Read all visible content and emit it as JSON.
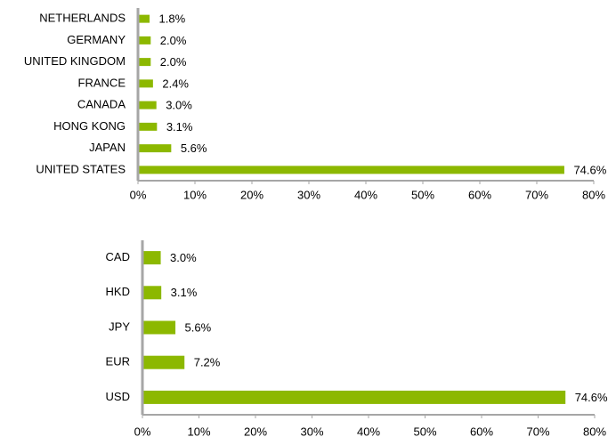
{
  "chart_data": [
    {
      "type": "hbar",
      "color": "#8cb800",
      "categories": [
        "NETHERLANDS",
        "GERMANY",
        "UNITED KINGDOM",
        "FRANCE",
        "CANADA",
        "HONG KONG",
        "JAPAN",
        "UNITED STATES"
      ],
      "values": [
        1.8,
        2.0,
        2.0,
        2.4,
        3.0,
        3.1,
        5.6,
        74.6
      ],
      "value_labels": [
        "1.8%",
        "2.0%",
        "2.0%",
        "2.4%",
        "3.0%",
        "3.1%",
        "5.6%",
        "74.6%"
      ],
      "xlim": [
        0,
        80
      ],
      "xticks": [
        {
          "value": 0,
          "label": "0%"
        },
        {
          "value": 10,
          "label": "10%"
        },
        {
          "value": 20,
          "label": "20%"
        },
        {
          "value": 30,
          "label": "30%"
        },
        {
          "value": 40,
          "label": "40%"
        },
        {
          "value": 50,
          "label": "50%"
        },
        {
          "value": 60,
          "label": "60%"
        },
        {
          "value": 70,
          "label": "70%"
        },
        {
          "value": 80,
          "label": "80%"
        }
      ]
    },
    {
      "type": "hbar",
      "color": "#8cb800",
      "categories": [
        "CAD",
        "HKD",
        "JPY",
        "EUR",
        "USD"
      ],
      "values": [
        3.0,
        3.1,
        5.6,
        7.2,
        74.6
      ],
      "value_labels": [
        "3.0%",
        "3.1%",
        "5.6%",
        "7.2%",
        "74.6%"
      ],
      "xlim": [
        0,
        80
      ],
      "xticks": [
        {
          "value": 0,
          "label": "0%"
        },
        {
          "value": 10,
          "label": "10%"
        },
        {
          "value": 20,
          "label": "20%"
        },
        {
          "value": 30,
          "label": "30%"
        },
        {
          "value": 40,
          "label": "40%"
        },
        {
          "value": 50,
          "label": "50%"
        },
        {
          "value": 60,
          "label": "60%"
        },
        {
          "value": 70,
          "label": "70%"
        },
        {
          "value": 80,
          "label": "80%"
        }
      ]
    }
  ]
}
